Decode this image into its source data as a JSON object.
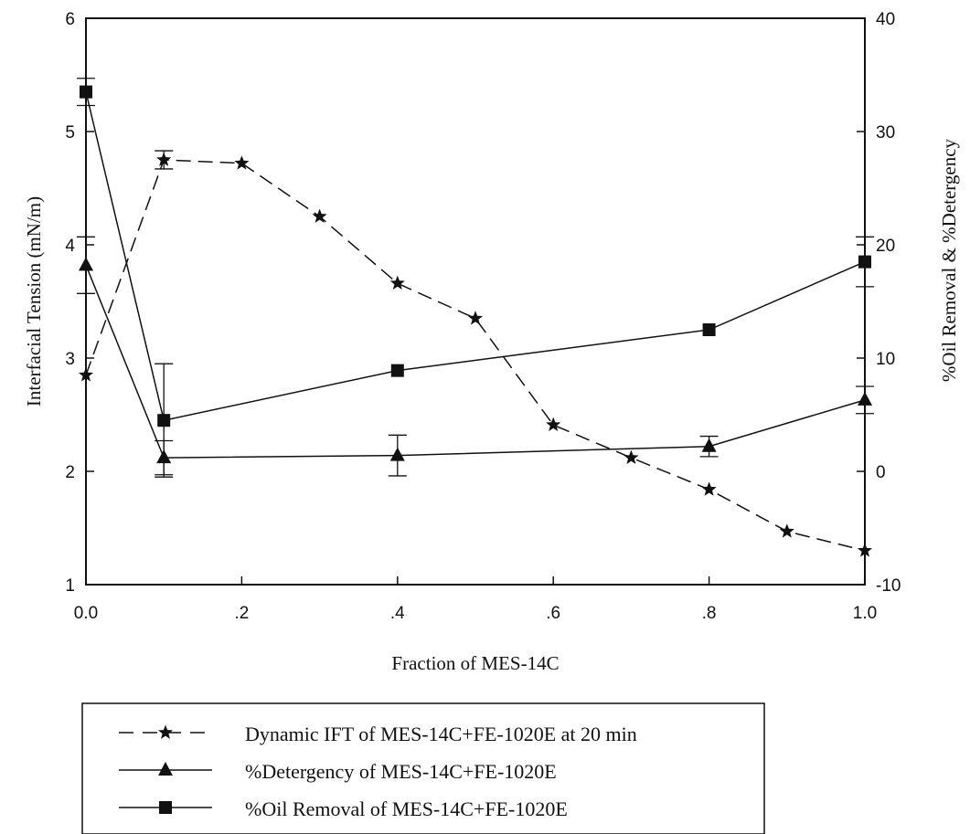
{
  "chart_data": {
    "type": "line",
    "xlabel": "Fraction of MES-14C",
    "ylabel_left": "Interfacial Tension (mN/m)",
    "ylabel_right": "%Oil Removal & %Detergency",
    "xlim": [
      0,
      1
    ],
    "ylim_left": [
      1,
      6
    ],
    "ylim_right": [
      -10,
      40
    ],
    "x_ticks": [
      {
        "v": 0.0,
        "label": "0.0"
      },
      {
        "v": 0.2,
        "label": ".2"
      },
      {
        "v": 0.4,
        "label": ".4"
      },
      {
        "v": 0.6,
        "label": ".6"
      },
      {
        "v": 0.8,
        "label": ".8"
      },
      {
        "v": 1.0,
        "label": "1.0"
      }
    ],
    "y_left_ticks": [
      {
        "v": 1,
        "label": "1"
      },
      {
        "v": 2,
        "label": "2"
      },
      {
        "v": 3,
        "label": "3"
      },
      {
        "v": 4,
        "label": "4"
      },
      {
        "v": 5,
        "label": "5"
      },
      {
        "v": 6,
        "label": "6"
      }
    ],
    "y_right_ticks": [
      {
        "v": -10,
        "label": "-10"
      },
      {
        "v": 0,
        "label": "0"
      },
      {
        "v": 10,
        "label": "10"
      },
      {
        "v": 20,
        "label": "20"
      },
      {
        "v": 30,
        "label": "30"
      },
      {
        "v": 40,
        "label": "40"
      }
    ],
    "grid": false,
    "legend_position": "bottom",
    "series": [
      {
        "name": "Dynamic IFT of MES-14C+FE-1020E at 20 min",
        "axis": "left",
        "marker": "star",
        "line": "dashed",
        "x": [
          0.0,
          0.1,
          0.2,
          0.3,
          0.4,
          0.5,
          0.6,
          0.7,
          0.8,
          0.9,
          1.0
        ],
        "y": [
          2.85,
          4.75,
          4.72,
          4.25,
          3.66,
          3.35,
          2.41,
          2.12,
          1.84,
          1.47,
          1.3
        ],
        "err": [
          0,
          0.08,
          0,
          0,
          0,
          0,
          0,
          0,
          0,
          0,
          0
        ]
      },
      {
        "name": "%Detergency of MES-14C+FE-1020E",
        "axis": "right",
        "marker": "triangle",
        "line": "solid",
        "x": [
          0.0,
          0.1,
          0.4,
          0.8,
          1.0
        ],
        "y": [
          18.2,
          1.2,
          1.4,
          2.2,
          6.3
        ],
        "err": [
          2.5,
          1.5,
          1.8,
          0.9,
          1.2
        ]
      },
      {
        "name": "%Oil Removal of MES-14C+FE-1020E",
        "axis": "right",
        "marker": "square",
        "line": "solid",
        "x": [
          0.0,
          0.1,
          0.4,
          0.8,
          1.0
        ],
        "y": [
          33.5,
          4.5,
          8.9,
          12.5,
          18.5
        ],
        "err": [
          1.2,
          5.0,
          0,
          0,
          2.2
        ]
      }
    ]
  }
}
